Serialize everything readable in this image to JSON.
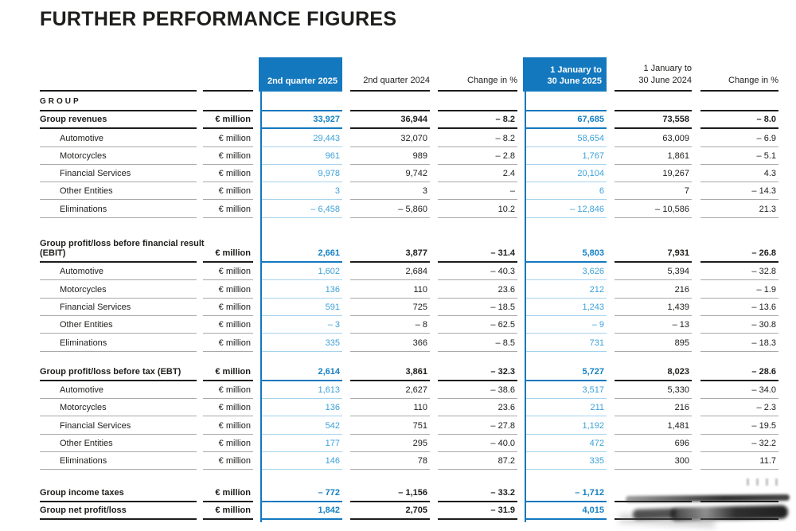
{
  "page_title": "FURTHER PERFORMANCE FIGURES",
  "colors": {
    "header_blue": "#1478be",
    "value_blue": "#3ba1d9",
    "value_blue_bold": "#1380c4",
    "light_blue_rule": "#a6d3ec",
    "text_black": "#1d1d1b",
    "gray_rule": "#a9a9a9"
  },
  "table": {
    "headers": [
      {
        "line1": "",
        "line2": "2nd quarter 2025",
        "highlight": true
      },
      {
        "line1": "",
        "line2": "2nd quarter 2024",
        "highlight": false
      },
      {
        "line1": "",
        "line2": "Change in %",
        "highlight": false
      },
      {
        "line1": "1 January to",
        "line2": "30 June 2025",
        "highlight": true
      },
      {
        "line1": "1 January to",
        "line2": "30 June 2024",
        "highlight": false
      },
      {
        "line1": "",
        "line2": "Change in %",
        "highlight": false
      }
    ],
    "rows": [
      {
        "kind": "section",
        "label": "GROUP"
      },
      {
        "kind": "row",
        "bold": true,
        "indent": false,
        "label": "Group revenues",
        "unit": "€ million",
        "values": [
          "33,927",
          "36,944",
          "– 8.2",
          "67,685",
          "73,558",
          "– 8.0"
        ]
      },
      {
        "kind": "row",
        "bold": false,
        "indent": true,
        "label": "Automotive",
        "unit": "€ million",
        "values": [
          "29,443",
          "32,070",
          "– 8.2",
          "58,654",
          "63,009",
          "– 6.9"
        ]
      },
      {
        "kind": "row",
        "bold": false,
        "indent": true,
        "label": "Motorcycles",
        "unit": "€ million",
        "values": [
          "961",
          "989",
          "– 2.8",
          "1,767",
          "1,861",
          "– 5.1"
        ]
      },
      {
        "kind": "row",
        "bold": false,
        "indent": true,
        "label": "Financial Services",
        "unit": "€ million",
        "values": [
          "9,978",
          "9,742",
          "2.4",
          "20,104",
          "19,267",
          "4.3"
        ]
      },
      {
        "kind": "row",
        "bold": false,
        "indent": true,
        "label": "Other Entities",
        "unit": "€ million",
        "values": [
          "3",
          "3",
          "–",
          "6",
          "7",
          "– 14.3"
        ]
      },
      {
        "kind": "row",
        "bold": false,
        "indent": true,
        "label": "Eliminations",
        "unit": "€ million",
        "values": [
          "– 6,458",
          "– 5,860",
          "10.2",
          "– 12,846",
          "– 10,586",
          "21.3"
        ]
      },
      {
        "kind": "gap"
      },
      {
        "kind": "row",
        "bold": true,
        "indent": false,
        "label_top": "Group profit/loss before financial result",
        "label": "(EBIT)",
        "unit": "€ million",
        "values": [
          "2,661",
          "3,877",
          "– 31.4",
          "5,803",
          "7,931",
          "– 26.8"
        ]
      },
      {
        "kind": "row",
        "bold": false,
        "indent": true,
        "label": "Automotive",
        "unit": "€ million",
        "values": [
          "1,602",
          "2,684",
          "– 40.3",
          "3,626",
          "5,394",
          "– 32.8"
        ]
      },
      {
        "kind": "row",
        "bold": false,
        "indent": true,
        "label": "Motorcycles",
        "unit": "€ million",
        "values": [
          "136",
          "110",
          "23.6",
          "212",
          "216",
          "– 1.9"
        ]
      },
      {
        "kind": "row",
        "bold": false,
        "indent": true,
        "label": "Financial Services",
        "unit": "€ million",
        "values": [
          "591",
          "725",
          "– 18.5",
          "1,243",
          "1,439",
          "– 13.6"
        ]
      },
      {
        "kind": "row",
        "bold": false,
        "indent": true,
        "label": "Other Entities",
        "unit": "€ million",
        "values": [
          "– 3",
          "– 8",
          "– 62.5",
          "– 9",
          "– 13",
          "– 30.8"
        ]
      },
      {
        "kind": "row",
        "bold": false,
        "indent": true,
        "label": "Eliminations",
        "unit": "€ million",
        "values": [
          "335",
          "366",
          "– 8.5",
          "731",
          "895",
          "– 18.3"
        ]
      },
      {
        "kind": "gap"
      },
      {
        "kind": "row",
        "bold": true,
        "indent": false,
        "label": "Group profit/loss before tax (EBT)",
        "unit": "€ million",
        "values": [
          "2,614",
          "3,861",
          "– 32.3",
          "5,727",
          "8,023",
          "– 28.6"
        ]
      },
      {
        "kind": "row",
        "bold": false,
        "indent": true,
        "label": "Automotive",
        "unit": "€ million",
        "values": [
          "1,613",
          "2,627",
          "– 38.6",
          "3,517",
          "5,330",
          "– 34.0"
        ]
      },
      {
        "kind": "row",
        "bold": false,
        "indent": true,
        "label": "Motorcycles",
        "unit": "€ million",
        "values": [
          "136",
          "110",
          "23.6",
          "211",
          "216",
          "– 2.3"
        ]
      },
      {
        "kind": "row",
        "bold": false,
        "indent": true,
        "label": "Financial Services",
        "unit": "€ million",
        "values": [
          "542",
          "751",
          "– 27.8",
          "1,192",
          "1,481",
          "– 19.5"
        ]
      },
      {
        "kind": "row",
        "bold": false,
        "indent": true,
        "label": "Other Entities",
        "unit": "€ million",
        "values": [
          "177",
          "295",
          "– 40.0",
          "472",
          "696",
          "– 32.2"
        ]
      },
      {
        "kind": "row",
        "bold": false,
        "indent": true,
        "label": "Eliminations",
        "unit": "€ million",
        "values": [
          "146",
          "78",
          "87.2",
          "335",
          "300",
          "11.7"
        ]
      },
      {
        "kind": "gap"
      },
      {
        "kind": "row",
        "bold": true,
        "indent": false,
        "label": "Group income taxes",
        "unit": "€ million",
        "values": [
          "– 772",
          "– 1,156",
          "– 33.2",
          "– 1,712",
          "",
          ""
        ]
      },
      {
        "kind": "row",
        "bold": true,
        "indent": false,
        "label": "Group net profit/loss",
        "unit": "€ million",
        "values": [
          "1,842",
          "2,705",
          "– 31.9",
          "4,015",
          "",
          ""
        ]
      }
    ]
  }
}
